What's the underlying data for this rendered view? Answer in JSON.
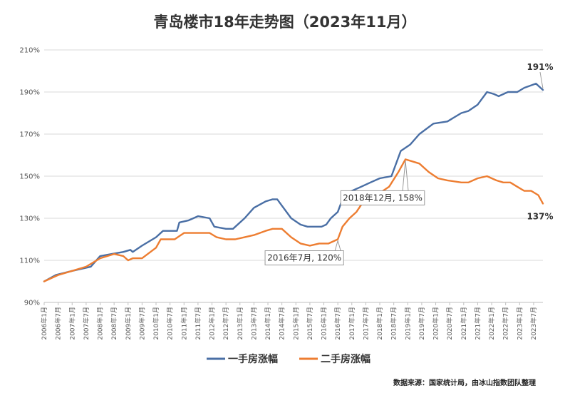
{
  "chart_data": {
    "type": "line",
    "title": "青岛楼市18年走势图（2023年11月）",
    "ylim": [
      90,
      210
    ],
    "y_ticks": [
      "90%",
      "110%",
      "130%",
      "150%",
      "170%",
      "190%",
      "210%"
    ],
    "y_tick_values": [
      90,
      110,
      130,
      150,
      170,
      190,
      210
    ],
    "x_ticks": [
      "2006年1月",
      "2006年7月",
      "2007年1月",
      "2007年7月",
      "2008年1月",
      "2008年7月",
      "2009年1月",
      "2009年7月",
      "2010年1月",
      "2010年7月",
      "2011年1月",
      "2011年7月",
      "2012年1月",
      "2012年7月",
      "2013年1月",
      "2013年7月",
      "2014年1月",
      "2014年7月",
      "2015年1月",
      "2015年7月",
      "2016年1月",
      "2016年7月",
      "2017年1月",
      "2017年7月",
      "2018年1月",
      "2018年7月",
      "2019年1月",
      "2019年7月",
      "2020年1月",
      "2020年7月",
      "2021年1月",
      "2021年7月",
      "2022年1月",
      "2022年7月",
      "2023年1月",
      "2023年7月"
    ],
    "x_range": [
      "2006-01",
      "2023-11"
    ],
    "grid": "horizontal",
    "legend_position": "bottom",
    "series": [
      {
        "name": "一手房涨幅",
        "color": "#4a6fa5",
        "points": [
          [
            "2006-01",
            100
          ],
          [
            "2006-06",
            103
          ],
          [
            "2007-01",
            105
          ],
          [
            "2007-09",
            107
          ],
          [
            "2008-01",
            112
          ],
          [
            "2008-06",
            113
          ],
          [
            "2008-11",
            114
          ],
          [
            "2009-02",
            115
          ],
          [
            "2009-03",
            114
          ],
          [
            "2009-07",
            117
          ],
          [
            "2010-01",
            121
          ],
          [
            "2010-04",
            124
          ],
          [
            "2010-10",
            124
          ],
          [
            "2010-11",
            128
          ],
          [
            "2011-03",
            129
          ],
          [
            "2011-07",
            131
          ],
          [
            "2011-12",
            130
          ],
          [
            "2012-02",
            126
          ],
          [
            "2012-07",
            125
          ],
          [
            "2012-10",
            125
          ],
          [
            "2013-03",
            130
          ],
          [
            "2013-07",
            135
          ],
          [
            "2013-12",
            138
          ],
          [
            "2014-03",
            139
          ],
          [
            "2014-05",
            139
          ],
          [
            "2014-07",
            136
          ],
          [
            "2014-11",
            130
          ],
          [
            "2015-03",
            127
          ],
          [
            "2015-06",
            126
          ],
          [
            "2015-09",
            126
          ],
          [
            "2015-12",
            126
          ],
          [
            "2016-02",
            127
          ],
          [
            "2016-04",
            130
          ],
          [
            "2016-07",
            133
          ],
          [
            "2016-10",
            142
          ],
          [
            "2017-01",
            143
          ],
          [
            "2017-05",
            145
          ],
          [
            "2017-09",
            147
          ],
          [
            "2018-01",
            149
          ],
          [
            "2018-06",
            150
          ],
          [
            "2018-10",
            162
          ],
          [
            "2019-02",
            165
          ],
          [
            "2019-06",
            170
          ],
          [
            "2019-12",
            175
          ],
          [
            "2020-06",
            176
          ],
          [
            "2020-12",
            180
          ],
          [
            "2021-03",
            181
          ],
          [
            "2021-07",
            184
          ],
          [
            "2021-11",
            190
          ],
          [
            "2022-02",
            189
          ],
          [
            "2022-04",
            188
          ],
          [
            "2022-08",
            190
          ],
          [
            "2022-12",
            190
          ],
          [
            "2023-03",
            192
          ],
          [
            "2023-08",
            194
          ],
          [
            "2023-11",
            191
          ]
        ]
      },
      {
        "name": "二手房涨幅",
        "color": "#ed7d31",
        "points": [
          [
            "2006-01",
            100
          ],
          [
            "2006-07",
            103
          ],
          [
            "2007-01",
            105
          ],
          [
            "2007-07",
            107
          ],
          [
            "2008-01",
            111
          ],
          [
            "2008-07",
            113
          ],
          [
            "2008-11",
            112
          ],
          [
            "2009-01",
            110
          ],
          [
            "2009-03",
            111
          ],
          [
            "2009-07",
            111
          ],
          [
            "2010-01",
            116
          ],
          [
            "2010-03",
            120
          ],
          [
            "2010-09",
            120
          ],
          [
            "2011-01",
            123
          ],
          [
            "2011-07",
            123
          ],
          [
            "2011-12",
            123
          ],
          [
            "2012-03",
            121
          ],
          [
            "2012-07",
            120
          ],
          [
            "2012-11",
            120
          ],
          [
            "2013-03",
            121
          ],
          [
            "2013-07",
            122
          ],
          [
            "2013-12",
            124
          ],
          [
            "2014-03",
            125
          ],
          [
            "2014-07",
            125
          ],
          [
            "2014-11",
            121
          ],
          [
            "2015-03",
            118
          ],
          [
            "2015-07",
            117
          ],
          [
            "2015-11",
            118
          ],
          [
            "2016-03",
            118
          ],
          [
            "2016-07",
            120
          ],
          [
            "2016-09",
            126
          ],
          [
            "2016-12",
            130
          ],
          [
            "2017-03",
            133
          ],
          [
            "2017-06",
            138
          ],
          [
            "2017-10",
            141
          ],
          [
            "2018-01",
            142
          ],
          [
            "2018-05",
            145
          ],
          [
            "2018-09",
            152
          ],
          [
            "2018-12",
            158
          ],
          [
            "2019-03",
            157
          ],
          [
            "2019-06",
            156
          ],
          [
            "2019-10",
            152
          ],
          [
            "2020-02",
            149
          ],
          [
            "2020-06",
            148
          ],
          [
            "2020-12",
            147
          ],
          [
            "2021-03",
            147
          ],
          [
            "2021-07",
            149
          ],
          [
            "2021-11",
            150
          ],
          [
            "2022-03",
            148
          ],
          [
            "2022-06",
            147
          ],
          [
            "2022-09",
            147
          ],
          [
            "2022-12",
            145
          ],
          [
            "2023-03",
            143
          ],
          [
            "2023-06",
            143
          ],
          [
            "2023-09",
            141
          ],
          [
            "2023-11",
            137
          ]
        ]
      }
    ],
    "end_labels": [
      {
        "series": "一手房涨幅",
        "text": "191%",
        "x": "2023-11",
        "y": 191
      },
      {
        "series": "二手房涨幅",
        "text": "137%",
        "x": "2023-11",
        "y": 137
      }
    ],
    "annotations": [
      {
        "text": "2018年12月, 158%",
        "x": "2018-12",
        "y": 158
      },
      {
        "text": "2016年7月, 120%",
        "x": "2016-07",
        "y": 120
      }
    ],
    "source_note": "数据来源：国家统计局，由冰山指数团队整理"
  }
}
